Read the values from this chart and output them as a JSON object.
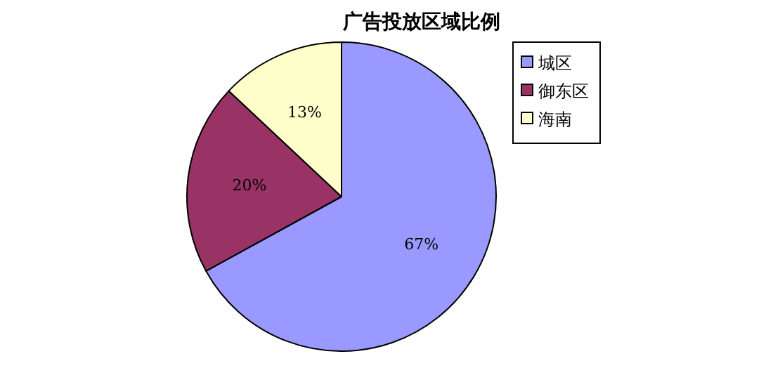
{
  "chart_data": {
    "type": "pie",
    "title": "广告投放区域比例",
    "categories": [
      "城区",
      "御东区",
      "海南"
    ],
    "values": [
      67,
      20,
      13
    ],
    "colors": [
      "#9999ff",
      "#993366",
      "#ffffcc"
    ],
    "value_labels": [
      "67%",
      "20%",
      "13%"
    ],
    "legend": "top right"
  }
}
